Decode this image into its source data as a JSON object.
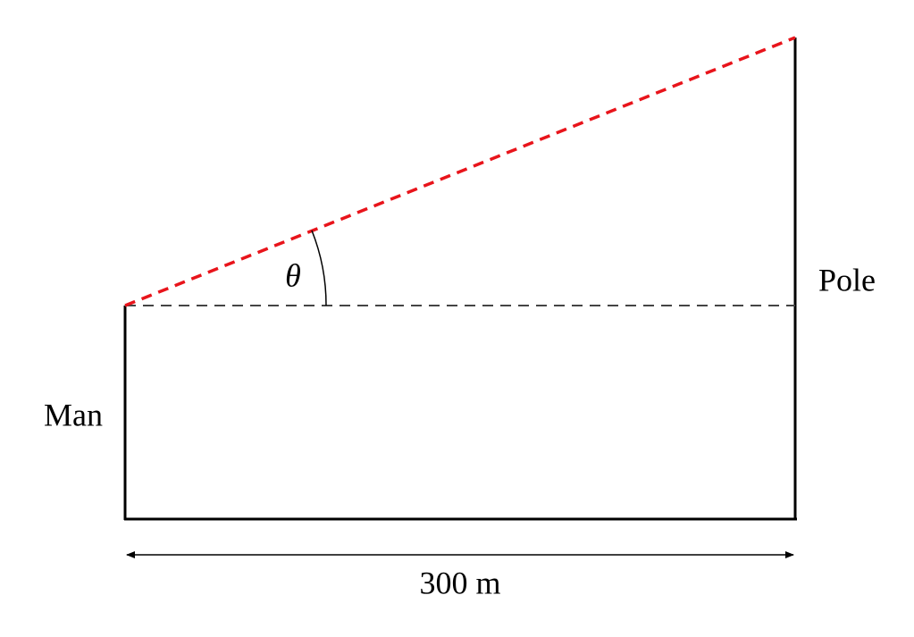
{
  "labels": {
    "man": "Man",
    "pole": "Pole",
    "angle": "θ",
    "distance": "300 m"
  }
}
